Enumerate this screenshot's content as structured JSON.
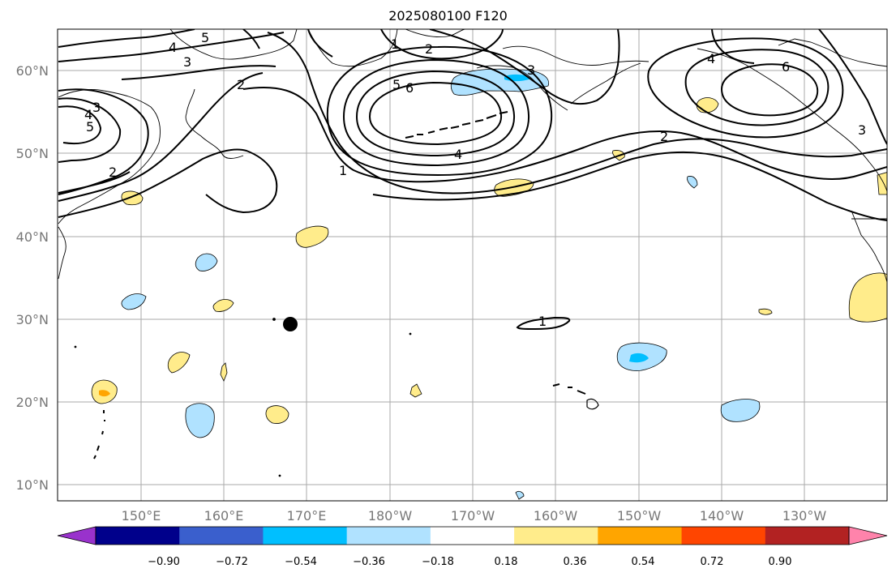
{
  "title": "2025080100 F120",
  "map": {
    "lat_labels": [
      "60°N",
      "50°N",
      "40°N",
      "30°N",
      "20°N",
      "10°N"
    ],
    "lon_labels": [
      "150°E",
      "160°E",
      "170°E",
      "180°W",
      "170°W",
      "160°W",
      "150°W",
      "140°W",
      "130°W"
    ],
    "contour_labels": [
      "5",
      "4",
      "3",
      "3",
      "4",
      "5",
      "2",
      "2",
      "1",
      "2",
      "5",
      "6",
      "3",
      "4",
      "1",
      "6",
      "4",
      "2",
      "3",
      "1"
    ]
  },
  "colorbar": {
    "ticks": [
      "−0.90",
      "−0.72",
      "−0.54",
      "−0.36",
      "−0.18",
      "0.18",
      "0.36",
      "0.54",
      "0.72",
      "0.90"
    ],
    "colors": [
      "#9932cc",
      "#00008b",
      "#3a5fcd",
      "#00bfff",
      "#b0e2ff",
      "#ffffff",
      "#ffec8b",
      "#ffa500",
      "#ff4500",
      "#b22222",
      "#ff83ab"
    ]
  },
  "colors": {
    "negative_light": "#b0e2ff",
    "negative_strong": "#00bfff",
    "positive_light": "#ffec8b",
    "positive_strong": "#ffa500"
  }
}
